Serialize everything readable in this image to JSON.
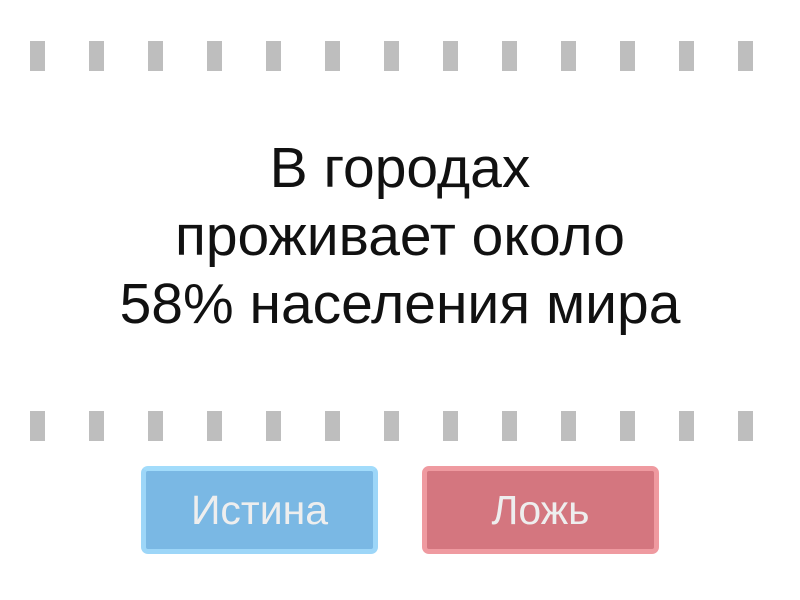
{
  "question": {
    "lines": [
      "В городах",
      "проживает около",
      "58% населения мира"
    ]
  },
  "buttons": {
    "true_label": "Истина",
    "false_label": "Ложь"
  },
  "colors": {
    "true_button": "#7ab8e4",
    "false_button": "#d4767f",
    "dash": "#bebebe"
  }
}
